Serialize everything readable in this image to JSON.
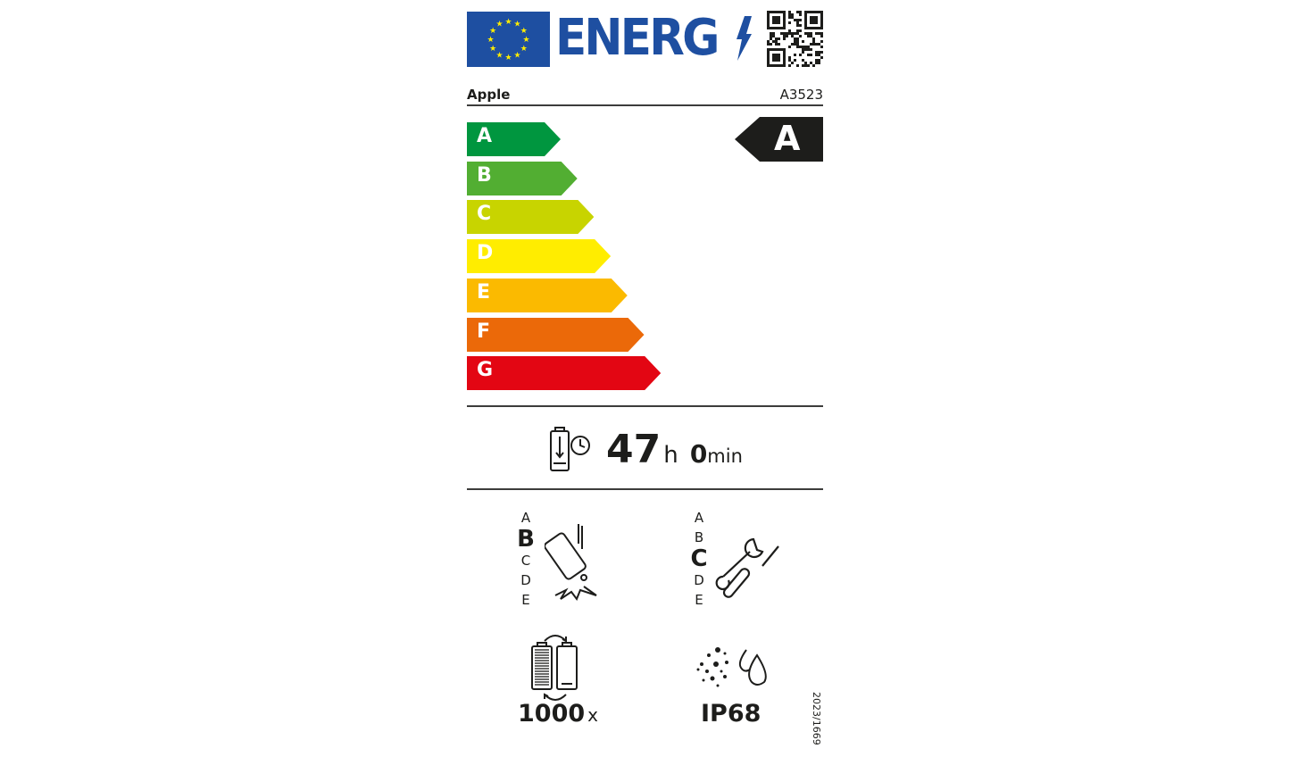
{
  "header": {
    "logo_text": "ENERG",
    "flag": "eu-flag",
    "bolt": "lightning-bolt-icon",
    "qr": "qr-code"
  },
  "supplier": "Apple",
  "model": "A3523",
  "classes": [
    {
      "label": "A",
      "color": "#00963f"
    },
    {
      "label": "B",
      "color": "#52ae32"
    },
    {
      "label": "C",
      "color": "#c8d400"
    },
    {
      "label": "D",
      "color": "#ffed00"
    },
    {
      "label": "E",
      "color": "#fbba00"
    },
    {
      "label": "F",
      "color": "#eb6909"
    },
    {
      "label": "G",
      "color": "#e30613"
    }
  ],
  "energy_class": "A",
  "battery_endurance": {
    "hours": "47",
    "h_unit": "h",
    "minutes": "0",
    "min_unit": "min"
  },
  "drop_resistance": {
    "scale": [
      "A",
      "B",
      "C",
      "D",
      "E"
    ],
    "selected": "B"
  },
  "repairability": {
    "scale": [
      "A",
      "B",
      "C",
      "D",
      "E"
    ],
    "selected": "C"
  },
  "battery_cycles": {
    "value": "1000",
    "unit": "x"
  },
  "ingress_protection": "IP68",
  "regulation": "2023/1669"
}
